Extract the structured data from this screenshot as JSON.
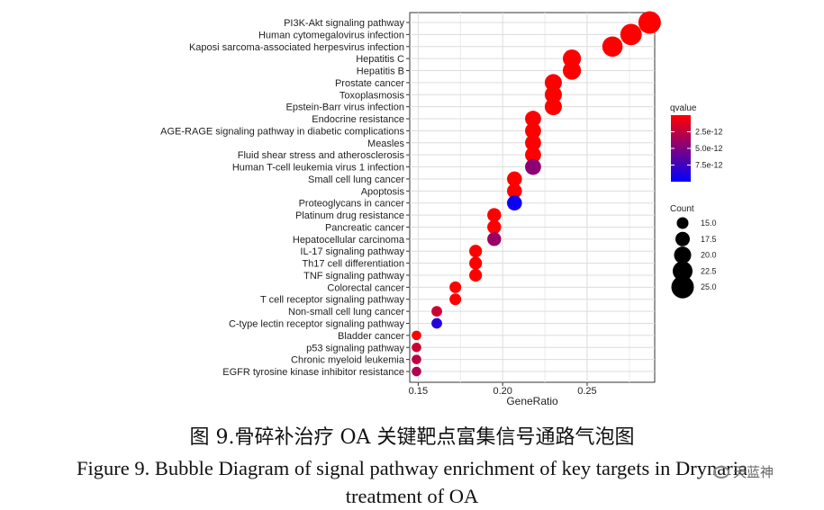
{
  "chart_data": {
    "type": "scatter",
    "title": "",
    "xlabel": "GeneRatio",
    "ylabel": "",
    "xlim": [
      0.145,
      0.29
    ],
    "x_ticks": [
      0.15,
      0.2,
      0.25
    ],
    "x_tick_labels": [
      "0.15",
      "0.20",
      "0.25"
    ],
    "grid": true,
    "pathways": [
      {
        "name": "PI3K-Akt signaling pathway",
        "gene_ratio": 0.287,
        "qvalue": 1e-14,
        "count": 25
      },
      {
        "name": "Human cytomegalovirus infection",
        "gene_ratio": 0.276,
        "qvalue": 1e-14,
        "count": 24
      },
      {
        "name": "Kaposi sarcoma-associated herpesvirus infection",
        "gene_ratio": 0.265,
        "qvalue": 1e-14,
        "count": 23
      },
      {
        "name": "Hepatitis C",
        "gene_ratio": 0.241,
        "qvalue": 1e-14,
        "count": 21
      },
      {
        "name": "Hepatitis B",
        "gene_ratio": 0.241,
        "qvalue": 1e-14,
        "count": 21
      },
      {
        "name": "Prostate cancer",
        "gene_ratio": 0.23,
        "qvalue": 1e-14,
        "count": 20
      },
      {
        "name": "Toxoplasmosis",
        "gene_ratio": 0.23,
        "qvalue": 1e-14,
        "count": 20
      },
      {
        "name": "Epstein-Barr virus infection",
        "gene_ratio": 0.23,
        "qvalue": 1e-14,
        "count": 20
      },
      {
        "name": "Endocrine resistance",
        "gene_ratio": 0.218,
        "qvalue": 1e-14,
        "count": 19
      },
      {
        "name": "AGE-RAGE signaling pathway in diabetic complications",
        "gene_ratio": 0.218,
        "qvalue": 1e-14,
        "count": 19
      },
      {
        "name": "Measles",
        "gene_ratio": 0.218,
        "qvalue": 1e-14,
        "count": 19
      },
      {
        "name": "Fluid shear stress and atherosclerosis",
        "gene_ratio": 0.218,
        "qvalue": 1e-14,
        "count": 19
      },
      {
        "name": "Human T-cell leukemia virus 1 infection",
        "gene_ratio": 0.218,
        "qvalue": 4.5e-12,
        "count": 19
      },
      {
        "name": "Small cell lung cancer",
        "gene_ratio": 0.207,
        "qvalue": 1e-14,
        "count": 18
      },
      {
        "name": "Apoptosis",
        "gene_ratio": 0.207,
        "qvalue": 1e-14,
        "count": 18
      },
      {
        "name": "Proteoglycans in cancer",
        "gene_ratio": 0.207,
        "qvalue": 9.5e-12,
        "count": 18
      },
      {
        "name": "Platinum drug resistance",
        "gene_ratio": 0.195,
        "qvalue": 1e-14,
        "count": 17
      },
      {
        "name": "Pancreatic cancer",
        "gene_ratio": 0.195,
        "qvalue": 1e-14,
        "count": 17
      },
      {
        "name": "Hepatocellular carcinoma",
        "gene_ratio": 0.195,
        "qvalue": 4e-12,
        "count": 17
      },
      {
        "name": "IL-17 signaling pathway",
        "gene_ratio": 0.184,
        "qvalue": 1e-14,
        "count": 16
      },
      {
        "name": "Th17 cell differentiation",
        "gene_ratio": 0.184,
        "qvalue": 1e-14,
        "count": 16
      },
      {
        "name": "TNF signaling pathway",
        "gene_ratio": 0.184,
        "qvalue": 1e-14,
        "count": 16
      },
      {
        "name": "Colorectal cancer",
        "gene_ratio": 0.172,
        "qvalue": 1e-14,
        "count": 15
      },
      {
        "name": "T cell receptor signaling pathway",
        "gene_ratio": 0.172,
        "qvalue": 1e-14,
        "count": 15
      },
      {
        "name": "Non-small cell lung cancer",
        "gene_ratio": 0.161,
        "qvalue": 2e-12,
        "count": 14
      },
      {
        "name": "C-type lectin receptor signaling pathway",
        "gene_ratio": 0.161,
        "qvalue": 8.5e-12,
        "count": 14
      },
      {
        "name": "Bladder cancer",
        "gene_ratio": 0.149,
        "qvalue": 1e-14,
        "count": 13
      },
      {
        "name": "p53 signaling pathway",
        "gene_ratio": 0.149,
        "qvalue": 2e-12,
        "count": 13
      },
      {
        "name": "Chronic myeloid leukemia",
        "gene_ratio": 0.149,
        "qvalue": 2.5e-12,
        "count": 13
      },
      {
        "name": "EGFR tyrosine kinase inhibitor resistance",
        "gene_ratio": 0.149,
        "qvalue": 3e-12,
        "count": 13
      }
    ],
    "color_legend": {
      "title": "qvalue",
      "min": 0.0,
      "max": 1e-11,
      "low_color": "#ff0000",
      "high_color": "#0000ff",
      "ticks": [
        2.5e-12,
        5e-12,
        7.5e-12
      ],
      "tick_labels": [
        "2.5e-12",
        "5.0e-12",
        "7.5e-12"
      ]
    },
    "size_legend": {
      "title": "Count",
      "values": [
        15,
        17.5,
        20,
        22.5,
        25
      ],
      "labels": [
        "15.0",
        "17.5",
        "20.0",
        "22.5",
        "25.0"
      ],
      "size_range": [
        13,
        25
      ]
    }
  },
  "caption": {
    "chinese": "图 9.骨碎补治疗 OA 关键靶点富集信号通路气泡图",
    "english_line1": "Figure 9. Bubble Diagram of signal pathway enrichment of key targets in Drynaria",
    "english_line2": "treatment of OA"
  },
  "watermark": {
    "text": "天蓝神"
  }
}
